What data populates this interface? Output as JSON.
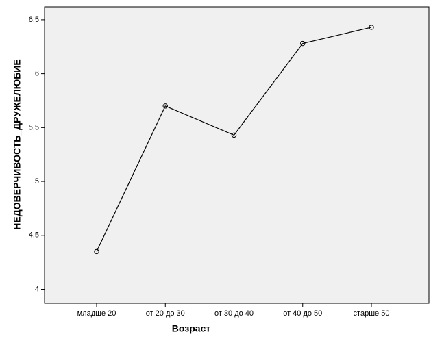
{
  "chart_data": {
    "type": "line",
    "x_label": "Возраст",
    "y_label": "НЕДОВЕРЧИВОСТЬ_ДРУЖЕЛЮБИЕ",
    "categories": [
      "младше 20",
      "от 20 до 30",
      "от 30 до 40",
      "от 40 до 50",
      "старше 50"
    ],
    "values": [
      4.35,
      5.7,
      5.43,
      6.28,
      6.43
    ],
    "color": "#000000",
    "ylim": [
      3.87,
      6.62
    ],
    "yticks": [
      4,
      {
        "value": 4.5,
        "label": "4,5"
      },
      5,
      {
        "value": 5.5,
        "label": "5,5"
      },
      6,
      {
        "value": 6.5,
        "label": "6,5"
      }
    ]
  }
}
